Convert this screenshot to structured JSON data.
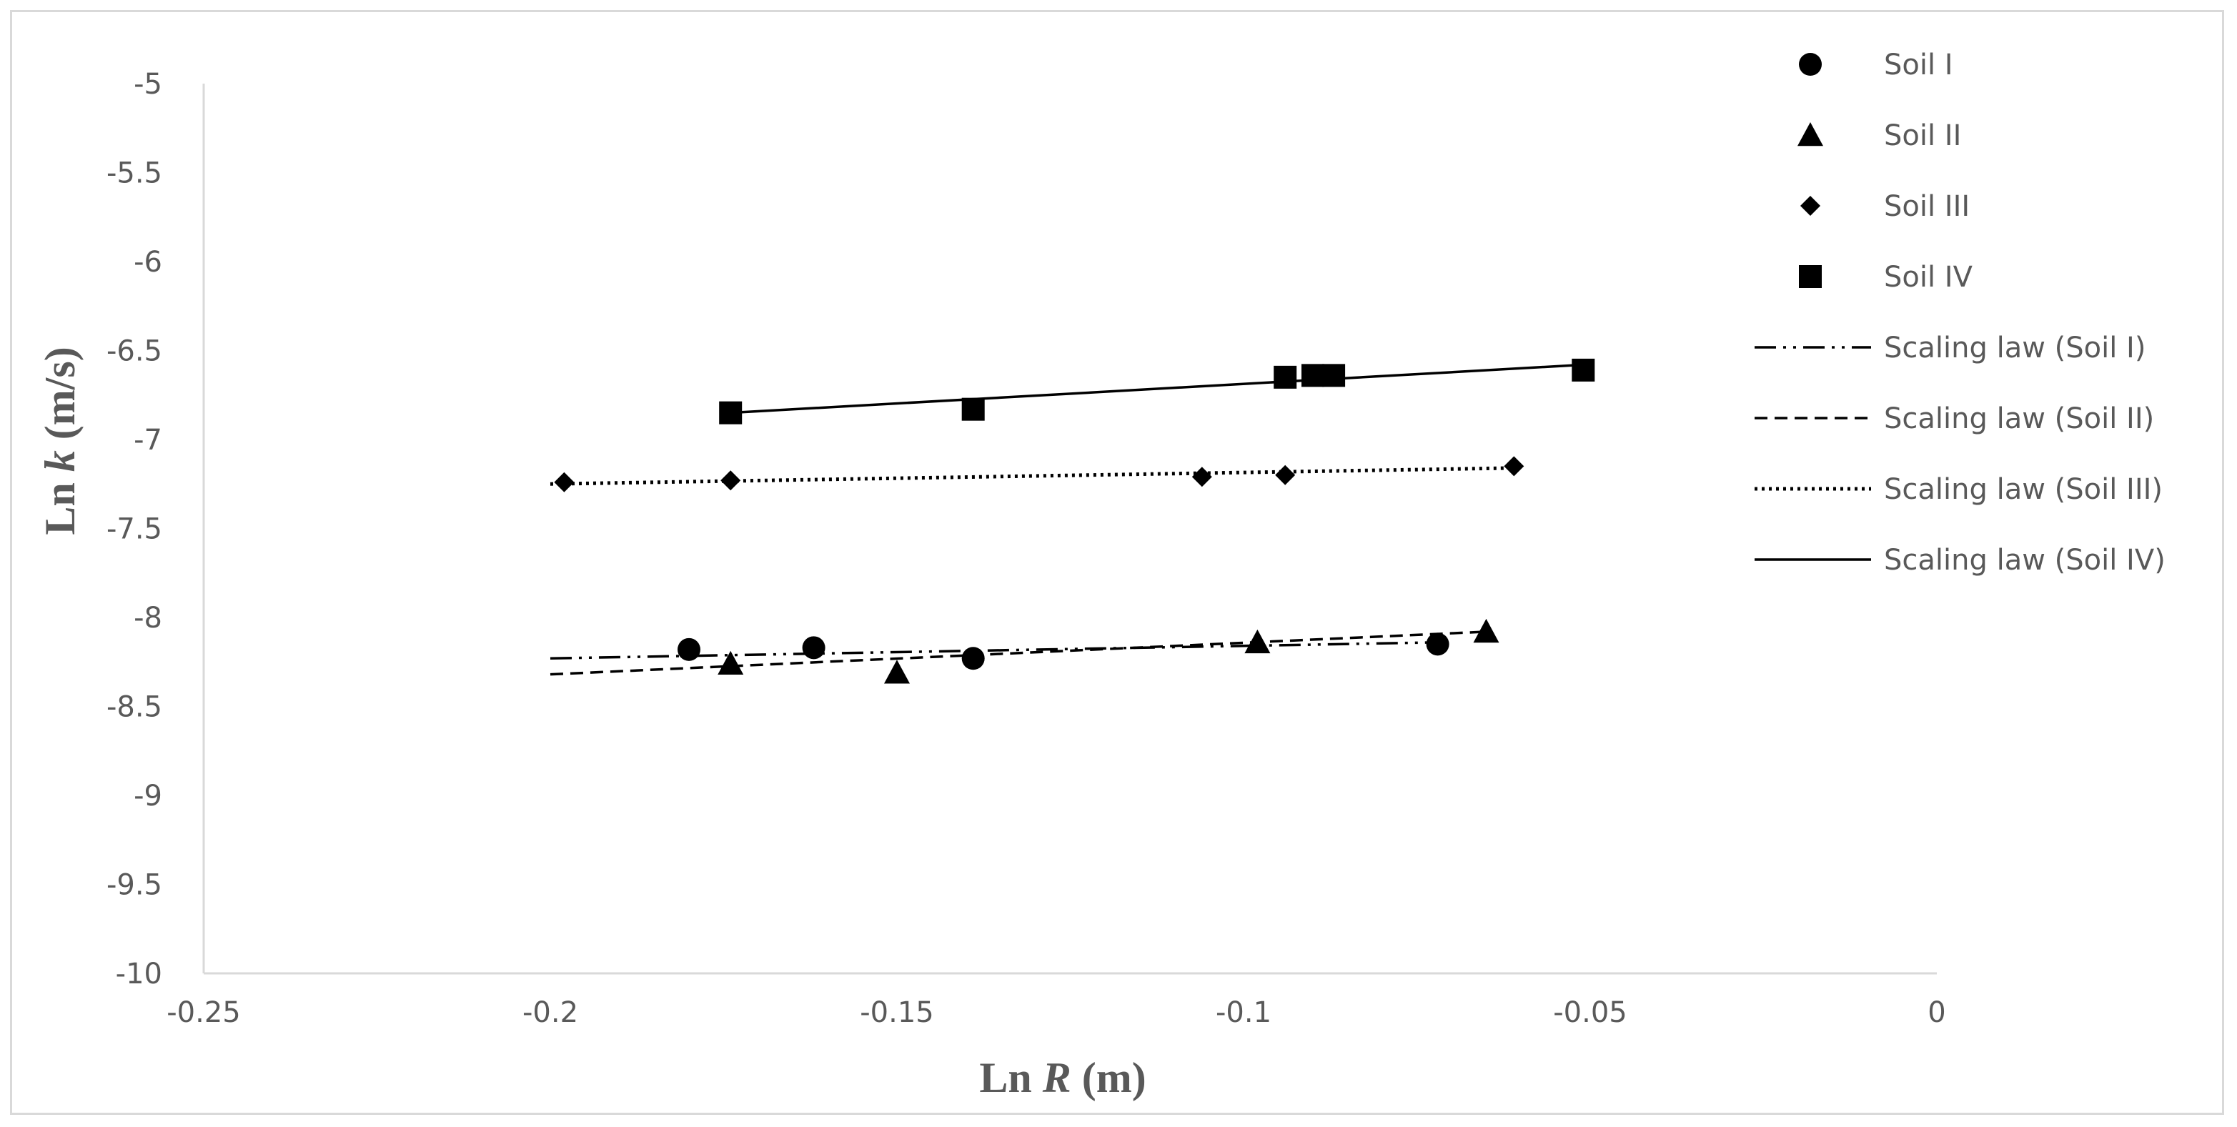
{
  "chart_data": {
    "type": "scatter",
    "title": "",
    "xlabel": {
      "prefix": "Ln ",
      "var": "R",
      "suffix": " (m)"
    },
    "ylabel": {
      "prefix": "Ln ",
      "var": "k",
      "suffix": " (m/s)"
    },
    "xlim": [
      -0.25,
      0
    ],
    "ylim": [
      -10,
      -5
    ],
    "xticks": [
      -0.25,
      -0.2,
      -0.15,
      -0.1,
      -0.05,
      0
    ],
    "xtick_labels": [
      "-0.25",
      "-0.2",
      "-0.15",
      "-0.1",
      "-0.05",
      "0"
    ],
    "yticks": [
      -5,
      -5.5,
      -6,
      -6.5,
      -7,
      -7.5,
      -8,
      -8.5,
      -9,
      -9.5,
      -10
    ],
    "ytick_labels": [
      "-5",
      "-5.5",
      "-6",
      "-6.5",
      "-7",
      "-7.5",
      "-8",
      "-8.5",
      "-9",
      "-9.5",
      "-10"
    ],
    "grid": false,
    "legend_position": "right",
    "series": [
      {
        "name": "Soil I",
        "marker": "circle",
        "x": [
          -0.18,
          -0.162,
          -0.139,
          -0.072
        ],
        "y": [
          -8.18,
          -8.17,
          -8.23,
          -8.15
        ]
      },
      {
        "name": "Soil II",
        "marker": "triangle",
        "x": [
          -0.174,
          -0.15,
          -0.098,
          -0.065
        ],
        "y": [
          -8.26,
          -8.31,
          -8.14,
          -8.08
        ]
      },
      {
        "name": "Soil III",
        "marker": "diamond",
        "x": [
          -0.198,
          -0.174,
          -0.106,
          -0.094,
          -0.061
        ],
        "y": [
          -7.24,
          -7.23,
          -7.21,
          -7.2,
          -7.15
        ]
      },
      {
        "name": "Soil IV",
        "marker": "square",
        "x": [
          -0.174,
          -0.139,
          -0.094,
          -0.09,
          -0.087,
          -0.051
        ],
        "y": [
          -6.85,
          -6.83,
          -6.65,
          -6.64,
          -6.64,
          -6.61
        ]
      }
    ],
    "fit_lines": [
      {
        "name": "Scaling law (Soil I)",
        "dash": "dashdotdot",
        "x": [
          -0.2,
          -0.072
        ],
        "y": [
          -8.23,
          -8.14
        ]
      },
      {
        "name": "Scaling law (Soil II)",
        "dash": "dashed",
        "x": [
          -0.2,
          -0.065
        ],
        "y": [
          -8.32,
          -8.08
        ]
      },
      {
        "name": "Scaling law (Soil III)",
        "dash": "dotted",
        "x": [
          -0.2,
          -0.061
        ],
        "y": [
          -7.25,
          -7.16
        ]
      },
      {
        "name": "Scaling law (Soil IV)",
        "dash": "solid",
        "x": [
          -0.174,
          -0.051
        ],
        "y": [
          -6.85,
          -6.58
        ]
      }
    ]
  }
}
